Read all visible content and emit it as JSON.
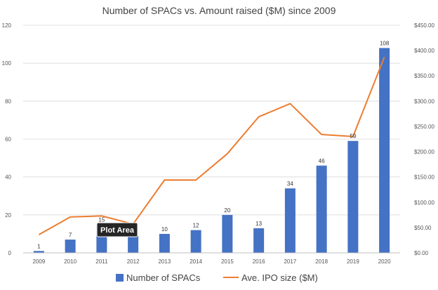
{
  "chart_data": {
    "type": "bar",
    "title": "Number of SPACs vs. Amount raised ($M) since 2009",
    "categories": [
      "2009",
      "2010",
      "2011",
      "2012",
      "2013",
      "2014",
      "2015",
      "2016",
      "2017",
      "2018",
      "2019",
      "2020"
    ],
    "series": [
      {
        "name": "Number of SPACs",
        "type": "bar",
        "axis": "left",
        "color": "#4472C4",
        "values": [
          1,
          7,
          15,
          9,
          10,
          12,
          20,
          13,
          34,
          46,
          59,
          108
        ],
        "data_labels": [
          "1",
          "7",
          "15",
          "",
          "10",
          "12",
          "20",
          "13",
          "34",
          "46",
          "59",
          "108"
        ]
      },
      {
        "name": "Ave. IPO size ($M)",
        "type": "line",
        "axis": "right",
        "color": "#ED7D31",
        "values": [
          36,
          71,
          73,
          57,
          144,
          144,
          196,
          269,
          295,
          234,
          230,
          387
        ]
      }
    ],
    "y_left": {
      "ylim": [
        0,
        120
      ],
      "ticks": [
        0,
        20,
        40,
        60,
        80,
        100,
        120
      ]
    },
    "y_right": {
      "ylim": [
        0,
        450
      ],
      "ticks": [
        0,
        50,
        100,
        150,
        200,
        250,
        300,
        350,
        400,
        450
      ],
      "tick_labels": [
        "$0.00",
        "$50.00",
        "$100.00",
        "$150.00",
        "$200.00",
        "$250.00",
        "$300.00",
        "$350.00",
        "$400.00",
        "$450.00"
      ]
    },
    "grid": true,
    "legend": "bottom",
    "tooltip": "Plot Area"
  }
}
